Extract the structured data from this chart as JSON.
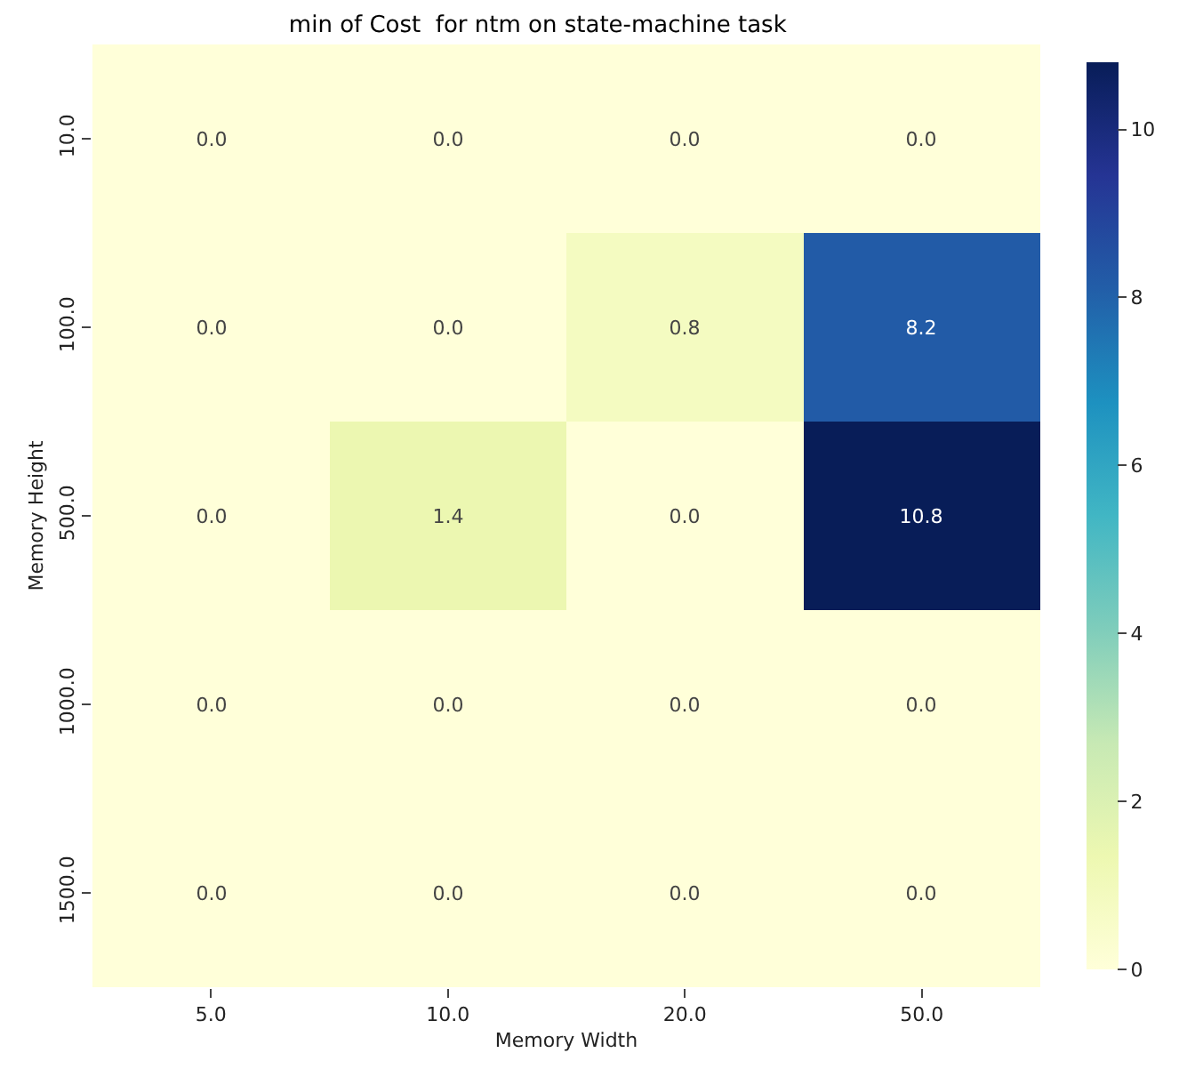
{
  "chart_data": {
    "type": "heatmap",
    "title": "min of Cost  for ntm on state-machine task",
    "xlabel": "Memory Width",
    "ylabel": "Memory Height",
    "categories": [
      "5.0",
      "10.0",
      "20.0",
      "50.0"
    ],
    "y_categories": [
      "10.0",
      "100.0",
      "500.0",
      "1000.0",
      "1500.0"
    ],
    "cells": [
      [
        0,
        0,
        0,
        0
      ],
      [
        0,
        0,
        0.8,
        8.2
      ],
      [
        0,
        1.4,
        0,
        10.8
      ],
      [
        0,
        0,
        0,
        0
      ],
      [
        0,
        0,
        0,
        0
      ]
    ],
    "cell_labels": [
      [
        "0.0",
        "0.0",
        "0.0",
        "0.0"
      ],
      [
        "0.0",
        "0.0",
        "0.8",
        "8.2"
      ],
      [
        "0.0",
        "1.4",
        "0.0",
        "10.8"
      ],
      [
        "0.0",
        "0.0",
        "0.0",
        "0.0"
      ],
      [
        "0.0",
        "0.0",
        "0.0",
        "0.0"
      ]
    ],
    "clim": [
      0,
      10.8
    ],
    "cticks": [
      0,
      2,
      4,
      6,
      8,
      10
    ]
  }
}
